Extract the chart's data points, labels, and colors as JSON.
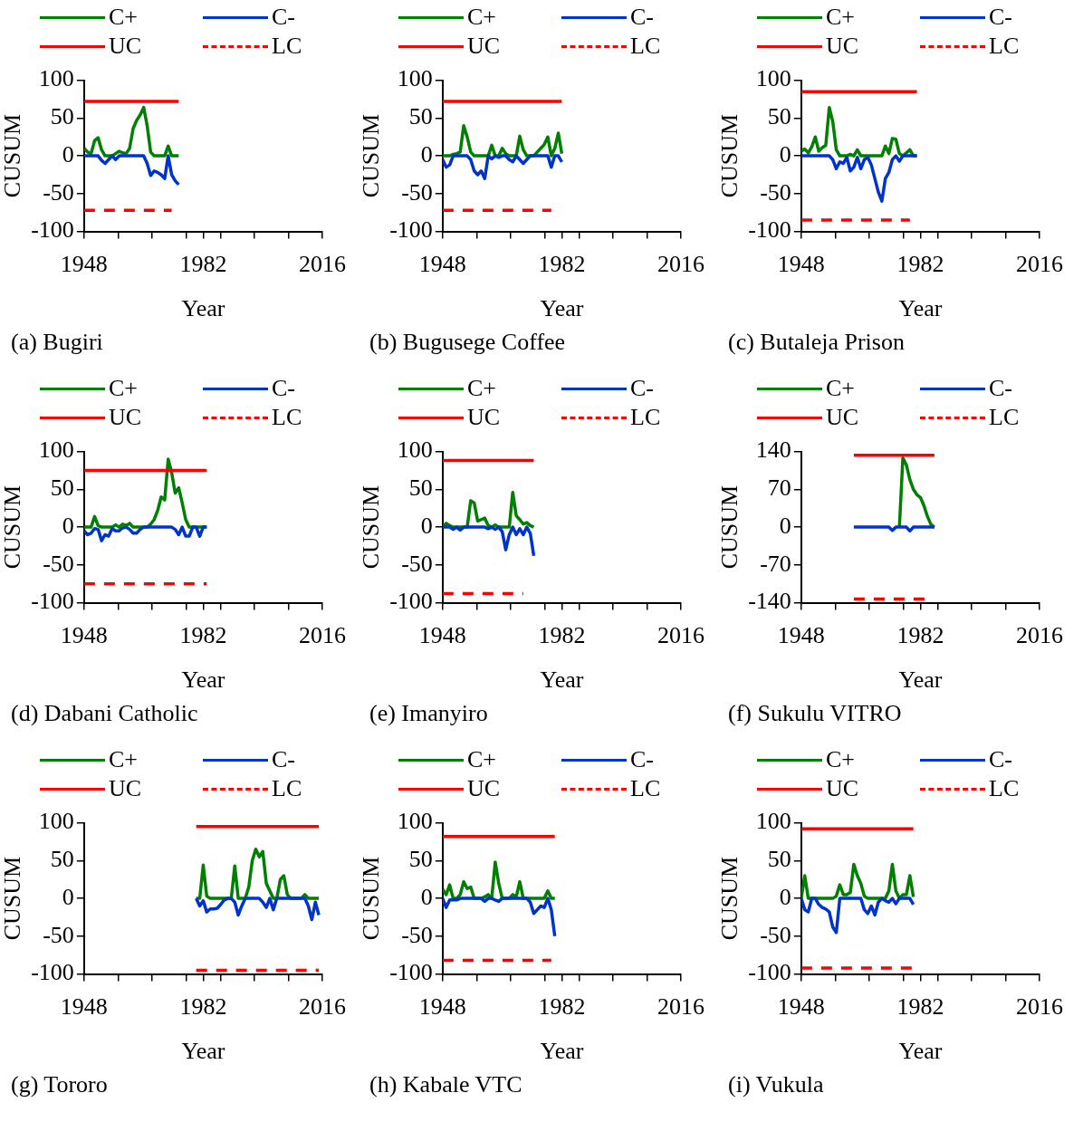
{
  "chart_data": [
    {
      "type": "line",
      "title": "(a) Bugiri",
      "xlabel": "Year",
      "ylabel": "CUSUM",
      "xlim": [
        1948,
        2016
      ],
      "xticks": [
        1948,
        {
          "value": 1957.7,
          "label": null
        },
        {
          "value": 1967.4,
          "label": null
        },
        {
          "value": 1977.1,
          "label": null
        },
        1982,
        {
          "value": 1986.9,
          "label": null
        },
        {
          "value": 1996.6,
          "label": null
        },
        {
          "value": 2006.3,
          "label": null
        },
        2016
      ],
      "ylim": [
        -100,
        100
      ],
      "yticks": [
        -100,
        -50,
        0,
        50,
        100
      ],
      "grid": false,
      "legend": "top",
      "marker": "none",
      "x": [
        1948,
        1949,
        1950,
        1951,
        1952,
        1953,
        1954,
        1955,
        1956,
        1957,
        1958,
        1959,
        1960,
        1961,
        1962,
        1963,
        1964,
        1965,
        1966,
        1967,
        1968,
        1969,
        1970,
        1971,
        1972,
        1973,
        1974,
        1975
      ],
      "series": [
        {
          "name": "C+",
          "color": "#008000",
          "values": [
            10,
            5,
            3,
            20,
            24,
            8,
            0,
            0,
            0,
            3,
            6,
            4,
            3,
            10,
            36,
            47,
            54,
            64,
            40,
            5,
            0,
            0,
            0,
            0,
            13,
            0,
            0,
            0
          ]
        },
        {
          "name": "C-",
          "color": "#0033cc",
          "values": [
            0,
            0,
            0,
            0,
            0,
            -6,
            -10,
            -5,
            0,
            -5,
            0,
            0,
            0,
            0,
            0,
            0,
            0,
            0,
            -10,
            -26,
            -20,
            -22,
            -25,
            -30,
            0,
            -25,
            -33,
            -38
          ]
        },
        {
          "name": "UC",
          "color": "#ff0000",
          "x": [
            1948,
            1975
          ],
          "values": [
            72,
            72
          ]
        },
        {
          "name": "LC",
          "color": "#ff0000",
          "line_style": "dashed",
          "x": [
            1948,
            1973
          ],
          "values": [
            -72,
            -72
          ]
        }
      ]
    },
    {
      "type": "line",
      "title": "(b) Bugusege Coffee",
      "xlabel": "Year",
      "ylabel": "CUSUM",
      "xlim": [
        1948,
        2016
      ],
      "xticks": [
        1948,
        {
          "value": 1957.7,
          "label": null
        },
        {
          "value": 1967.4,
          "label": null
        },
        {
          "value": 1977.1,
          "label": null
        },
        1982,
        {
          "value": 1986.9,
          "label": null
        },
        {
          "value": 1996.6,
          "label": null
        },
        {
          "value": 2006.3,
          "label": null
        },
        2016
      ],
      "ylim": [
        -100,
        100
      ],
      "yticks": [
        -100,
        -50,
        0,
        50,
        100
      ],
      "grid": false,
      "legend": "top",
      "marker": "none",
      "x": [
        1948,
        1949,
        1950,
        1951,
        1952,
        1953,
        1954,
        1955,
        1956,
        1957,
        1958,
        1959,
        1960,
        1961,
        1962,
        1963,
        1964,
        1965,
        1966,
        1967,
        1968,
        1969,
        1970,
        1971,
        1972,
        1973,
        1974,
        1975,
        1976,
        1977,
        1978,
        1979,
        1980,
        1981,
        1982
      ],
      "series": [
        {
          "name": "C+",
          "color": "#008000",
          "values": [
            0,
            0,
            0,
            2,
            3,
            5,
            40,
            25,
            5,
            0,
            0,
            0,
            0,
            0,
            14,
            0,
            0,
            10,
            3,
            0,
            0,
            0,
            26,
            8,
            0,
            0,
            0,
            5,
            10,
            15,
            25,
            0,
            10,
            30,
            3
          ]
        },
        {
          "name": "C-",
          "color": "#0033cc",
          "values": [
            -5,
            -15,
            -12,
            0,
            0,
            0,
            0,
            0,
            -5,
            -20,
            -25,
            -20,
            -30,
            0,
            -4,
            0,
            -2,
            0,
            0,
            -5,
            -8,
            0,
            -5,
            -10,
            -5,
            0,
            0,
            0,
            0,
            0,
            0,
            -15,
            0,
            0,
            -8
          ]
        },
        {
          "name": "UC",
          "color": "#ff0000",
          "x": [
            1948,
            1982
          ],
          "values": [
            72,
            72
          ]
        },
        {
          "name": "LC",
          "color": "#ff0000",
          "line_style": "dashed",
          "x": [
            1948,
            1979
          ],
          "values": [
            -72,
            -72
          ]
        }
      ]
    },
    {
      "type": "line",
      "title": "(c) Butaleja Prison",
      "xlabel": "Year",
      "ylabel": "CUSUM",
      "xlim": [
        1948,
        2016
      ],
      "xticks": [
        1948,
        {
          "value": 1957.7,
          "label": null
        },
        {
          "value": 1967.4,
          "label": null
        },
        {
          "value": 1977.1,
          "label": null
        },
        1982,
        {
          "value": 1986.9,
          "label": null
        },
        {
          "value": 1996.6,
          "label": null
        },
        {
          "value": 2006.3,
          "label": null
        },
        2016
      ],
      "ylim": [
        -100,
        100
      ],
      "yticks": [
        -100,
        -50,
        0,
        50,
        100
      ],
      "grid": false,
      "legend": "top",
      "marker": "none",
      "x": [
        1948,
        1949,
        1950,
        1951,
        1952,
        1953,
        1954,
        1955,
        1956,
        1957,
        1958,
        1959,
        1960,
        1961,
        1962,
        1963,
        1964,
        1965,
        1966,
        1967,
        1968,
        1969,
        1970,
        1971,
        1972,
        1973,
        1974,
        1975,
        1976,
        1977,
        1978,
        1979,
        1980,
        1981
      ],
      "series": [
        {
          "name": "C+",
          "color": "#008000",
          "values": [
            6,
            9,
            4,
            12,
            25,
            6,
            11,
            14,
            64,
            45,
            8,
            0,
            0,
            0,
            2,
            0,
            8,
            0,
            0,
            0,
            0,
            0,
            0,
            0,
            13,
            3,
            23,
            22,
            3,
            0,
            4,
            8,
            0,
            0
          ]
        },
        {
          "name": "C-",
          "color": "#0033cc",
          "values": [
            0,
            0,
            0,
            0,
            0,
            0,
            0,
            0,
            0,
            -5,
            -17,
            -8,
            -10,
            -2,
            -20,
            -15,
            -2,
            -17,
            -5,
            -2,
            -12,
            -30,
            -48,
            -60,
            -30,
            -22,
            -5,
            0,
            -7,
            0,
            0,
            0,
            0,
            0
          ]
        },
        {
          "name": "UC",
          "color": "#ff0000",
          "x": [
            1948,
            1981
          ],
          "values": [
            85,
            85
          ]
        },
        {
          "name": "LC",
          "color": "#ff0000",
          "line_style": "dashed",
          "x": [
            1948,
            1979
          ],
          "values": [
            -85,
            -85
          ]
        }
      ]
    },
    {
      "type": "line",
      "title": "(d) Dabani Catholic",
      "xlabel": "Year",
      "ylabel": "CUSUM",
      "xlim": [
        1948,
        2016
      ],
      "xticks": [
        1948,
        {
          "value": 1957.7,
          "label": null
        },
        {
          "value": 1967.4,
          "label": null
        },
        {
          "value": 1977.1,
          "label": null
        },
        1982,
        {
          "value": 1986.9,
          "label": null
        },
        {
          "value": 1996.6,
          "label": null
        },
        {
          "value": 2006.3,
          "label": null
        },
        2016
      ],
      "ylim": [
        -100,
        100
      ],
      "yticks": [
        -100,
        -50,
        0,
        50,
        100
      ],
      "grid": false,
      "legend": "top",
      "marker": "none",
      "x": [
        1948,
        1949,
        1950,
        1951,
        1952,
        1953,
        1954,
        1955,
        1956,
        1957,
        1958,
        1959,
        1960,
        1961,
        1962,
        1963,
        1964,
        1965,
        1966,
        1967,
        1968,
        1969,
        1970,
        1971,
        1972,
        1973,
        1974,
        1975,
        1976,
        1977,
        1978,
        1979,
        1980,
        1981,
        1982,
        1983
      ],
      "series": [
        {
          "name": "C+",
          "color": "#008000",
          "values": [
            0,
            0,
            0,
            14,
            2,
            0,
            0,
            0,
            0,
            3,
            0,
            4,
            2,
            5,
            0,
            0,
            0,
            0,
            0,
            4,
            10,
            22,
            40,
            36,
            90,
            72,
            45,
            52,
            32,
            10,
            0,
            0,
            0,
            0,
            0,
            0
          ]
        },
        {
          "name": "C-",
          "color": "#0033cc",
          "values": [
            -5,
            -10,
            -8,
            -2,
            -3,
            -18,
            -10,
            -12,
            -2,
            -5,
            -5,
            -1,
            0,
            -3,
            -8,
            -8,
            -3,
            0,
            0,
            0,
            0,
            0,
            0,
            0,
            0,
            0,
            -3,
            -10,
            0,
            -12,
            -12,
            0,
            0,
            -12,
            0,
            0
          ]
        },
        {
          "name": "UC",
          "color": "#ff0000",
          "x": [
            1948,
            1983
          ],
          "values": [
            75,
            75
          ]
        },
        {
          "name": "LC",
          "color": "#ff0000",
          "line_style": "dashed",
          "x": [
            1948,
            1983
          ],
          "values": [
            -75,
            -75
          ]
        }
      ]
    },
    {
      "type": "line",
      "title": "(e) Imanyiro",
      "xlabel": "Year",
      "ylabel": "CUSUM",
      "xlim": [
        1948,
        2016
      ],
      "xticks": [
        1948,
        {
          "value": 1957.7,
          "label": null
        },
        {
          "value": 1967.4,
          "label": null
        },
        {
          "value": 1977.1,
          "label": null
        },
        1982,
        {
          "value": 1986.9,
          "label": null
        },
        {
          "value": 1996.6,
          "label": null
        },
        {
          "value": 2006.3,
          "label": null
        },
        2016
      ],
      "ylim": [
        -100,
        100
      ],
      "yticks": [
        -100,
        -50,
        0,
        50,
        100
      ],
      "grid": false,
      "legend": "top",
      "marker": "none",
      "x": [
        1948,
        1949,
        1950,
        1951,
        1952,
        1953,
        1954,
        1955,
        1956,
        1957,
        1958,
        1959,
        1960,
        1961,
        1962,
        1963,
        1964,
        1965,
        1966,
        1967,
        1968,
        1969,
        1970,
        1971,
        1972,
        1973,
        1974
      ],
      "series": [
        {
          "name": "C+",
          "color": "#008000",
          "values": [
            0,
            5,
            2,
            0,
            0,
            0,
            0,
            0,
            35,
            32,
            8,
            10,
            12,
            2,
            0,
            3,
            0,
            0,
            0,
            0,
            46,
            15,
            10,
            4,
            6,
            2,
            0
          ]
        },
        {
          "name": "C-",
          "color": "#0033cc",
          "values": [
            0,
            0,
            0,
            -3,
            0,
            -4,
            0,
            0,
            0,
            0,
            0,
            0,
            0,
            -2,
            0,
            -3,
            0,
            -6,
            -30,
            -10,
            0,
            -10,
            -2,
            -10,
            0,
            -8,
            -38
          ]
        },
        {
          "name": "UC",
          "color": "#ff0000",
          "x": [
            1948,
            1974
          ],
          "values": [
            88,
            88
          ]
        },
        {
          "name": "LC",
          "color": "#ff0000",
          "line_style": "dashed",
          "x": [
            1948,
            1971
          ],
          "values": [
            -88,
            -88
          ]
        }
      ]
    },
    {
      "type": "line",
      "title": "(f) Sukulu VITRO",
      "xlabel": "Year",
      "ylabel": "CUSUM",
      "xlim": [
        1948,
        2016
      ],
      "xticks": [
        1948,
        {
          "value": 1957.7,
          "label": null
        },
        {
          "value": 1967.4,
          "label": null
        },
        {
          "value": 1977.1,
          "label": null
        },
        1982,
        {
          "value": 1986.9,
          "label": null
        },
        {
          "value": 1996.6,
          "label": null
        },
        {
          "value": 2006.3,
          "label": null
        },
        2016
      ],
      "ylim": [
        -140,
        140
      ],
      "yticks": [
        -140,
        -70,
        0,
        70,
        140
      ],
      "grid": false,
      "legend": "top",
      "marker": "none",
      "x": [
        1963,
        1964,
        1965,
        1966,
        1967,
        1968,
        1969,
        1970,
        1971,
        1972,
        1973,
        1974,
        1975,
        1976,
        1977,
        1978,
        1979,
        1980,
        1981,
        1982,
        1983,
        1984,
        1985,
        1986
      ],
      "series": [
        {
          "name": "C+",
          "color": "#008000",
          "values": [
            null,
            null,
            null,
            null,
            null,
            null,
            null,
            null,
            null,
            null,
            null,
            null,
            null,
            0,
            128,
            115,
            88,
            70,
            60,
            55,
            40,
            20,
            5,
            0
          ]
        },
        {
          "name": "C-",
          "color": "#0033cc",
          "values": [
            0,
            0,
            0,
            0,
            0,
            0,
            0,
            0,
            0,
            0,
            0,
            -6,
            0,
            0,
            0,
            0,
            -7,
            0,
            0,
            0,
            0,
            0,
            0,
            0
          ]
        },
        {
          "name": "UC",
          "color": "#ff0000",
          "x": [
            1963,
            1986
          ],
          "values": [
            133,
            133
          ]
        },
        {
          "name": "LC",
          "color": "#ff0000",
          "line_style": "dashed",
          "x": [
            1963,
            1984
          ],
          "values": [
            -133,
            -133
          ]
        }
      ]
    },
    {
      "type": "line",
      "title": "(g) Tororo",
      "xlabel": "Year",
      "ylabel": "CUSUM",
      "xlim": [
        1948,
        2016
      ],
      "xticks": [
        1948,
        {
          "value": 1957.7,
          "label": null
        },
        {
          "value": 1967.4,
          "label": null
        },
        {
          "value": 1977.1,
          "label": null
        },
        1982,
        {
          "value": 1986.9,
          "label": null
        },
        {
          "value": 1996.6,
          "label": null
        },
        {
          "value": 2006.3,
          "label": null
        },
        2016
      ],
      "ylim": [
        -100,
        100
      ],
      "yticks": [
        -100,
        -50,
        0,
        50,
        100
      ],
      "grid": false,
      "legend": "top",
      "marker": "none",
      "x": [
        1980,
        1981,
        1982,
        1983,
        1984,
        1985,
        1986,
        1987,
        1988,
        1989,
        1990,
        1991,
        1992,
        1993,
        1994,
        1995,
        1996,
        1997,
        1998,
        1999,
        2000,
        2001,
        2002,
        2003,
        2004,
        2005,
        2006,
        2007,
        2008,
        2009,
        2010,
        2011,
        2012,
        2013,
        2014,
        2015
      ],
      "series": [
        {
          "name": "C+",
          "color": "#008000",
          "values": [
            0,
            0,
            44,
            3,
            0,
            0,
            0,
            0,
            0,
            0,
            0,
            43,
            0,
            0,
            0,
            15,
            50,
            65,
            55,
            62,
            20,
            10,
            0,
            0,
            25,
            30,
            5,
            0,
            0,
            0,
            0,
            5,
            0,
            0,
            0,
            0
          ]
        },
        {
          "name": "C-",
          "color": "#0033cc",
          "values": [
            0,
            -10,
            -3,
            -18,
            -14,
            -14,
            -13,
            -8,
            -2,
            0,
            0,
            -5,
            -22,
            -10,
            0,
            0,
            0,
            0,
            0,
            -5,
            -12,
            0,
            -15,
            0,
            0,
            0,
            0,
            0,
            0,
            0,
            0,
            0,
            -10,
            -28,
            -5,
            -22
          ]
        },
        {
          "name": "UC",
          "color": "#ff0000",
          "x": [
            1980,
            2015
          ],
          "values": [
            95,
            95
          ]
        },
        {
          "name": "LC",
          "color": "#ff0000",
          "line_style": "dashed",
          "x": [
            1980,
            2015
          ],
          "values": [
            -95,
            -95
          ]
        }
      ]
    },
    {
      "type": "line",
      "title": "(h) Kabale VTC",
      "xlabel": "Year",
      "ylabel": "CUSUM",
      "xlim": [
        1948,
        2016
      ],
      "xticks": [
        1948,
        {
          "value": 1957.7,
          "label": null
        },
        {
          "value": 1967.4,
          "label": null
        },
        {
          "value": 1977.1,
          "label": null
        },
        1982,
        {
          "value": 1986.9,
          "label": null
        },
        {
          "value": 1996.6,
          "label": null
        },
        {
          "value": 2006.3,
          "label": null
        },
        2016
      ],
      "ylim": [
        -100,
        100
      ],
      "yticks": [
        -100,
        -50,
        0,
        50,
        100
      ],
      "grid": false,
      "legend": "top",
      "marker": "none",
      "x": [
        1948,
        1949,
        1950,
        1951,
        1952,
        1953,
        1954,
        1955,
        1956,
        1957,
        1958,
        1959,
        1960,
        1961,
        1962,
        1963,
        1964,
        1965,
        1966,
        1967,
        1968,
        1969,
        1970,
        1971,
        1972,
        1973,
        1974,
        1975,
        1976,
        1977,
        1978,
        1979,
        1980
      ],
      "series": [
        {
          "name": "C+",
          "color": "#008000",
          "values": [
            12,
            5,
            18,
            0,
            0,
            5,
            22,
            13,
            15,
            0,
            0,
            0,
            2,
            5,
            0,
            48,
            20,
            0,
            0,
            0,
            5,
            2,
            22,
            0,
            0,
            0,
            0,
            0,
            0,
            0,
            10,
            0,
            0
          ]
        },
        {
          "name": "C-",
          "color": "#0033cc",
          "values": [
            0,
            -12,
            -2,
            -2,
            -2,
            0,
            0,
            0,
            0,
            0,
            0,
            0,
            -4,
            0,
            0,
            -2,
            -4,
            0,
            0,
            0,
            0,
            0,
            0,
            0,
            0,
            -5,
            -20,
            -15,
            -10,
            -12,
            0,
            -15,
            -50
          ]
        },
        {
          "name": "UC",
          "color": "#ff0000",
          "x": [
            1948,
            1980
          ],
          "values": [
            82,
            82
          ]
        },
        {
          "name": "LC",
          "color": "#ff0000",
          "line_style": "dashed",
          "x": [
            1948,
            1979
          ],
          "values": [
            -82,
            -82
          ]
        }
      ]
    },
    {
      "type": "line",
      "title": "(i) Vukula",
      "xlabel": "Year",
      "ylabel": "CUSUM",
      "xlim": [
        1948,
        2016
      ],
      "xticks": [
        1948,
        {
          "value": 1957.7,
          "label": null
        },
        {
          "value": 1967.4,
          "label": null
        },
        {
          "value": 1977.1,
          "label": null
        },
        1982,
        {
          "value": 1986.9,
          "label": null
        },
        {
          "value": 1996.6,
          "label": null
        },
        {
          "value": 2006.3,
          "label": null
        },
        2016
      ],
      "ylim": [
        -100,
        100
      ],
      "yticks": [
        -100,
        -50,
        0,
        50,
        100
      ],
      "grid": false,
      "legend": "top",
      "marker": "none",
      "x": [
        1948,
        1949,
        1950,
        1951,
        1952,
        1953,
        1954,
        1955,
        1956,
        1957,
        1958,
        1959,
        1960,
        1961,
        1962,
        1963,
        1964,
        1965,
        1966,
        1967,
        1968,
        1969,
        1970,
        1971,
        1972,
        1973,
        1974,
        1975,
        1976,
        1977,
        1978,
        1979,
        1980
      ],
      "series": [
        {
          "name": "C+",
          "color": "#008000",
          "values": [
            0,
            30,
            0,
            0,
            0,
            0,
            0,
            0,
            0,
            0,
            3,
            18,
            5,
            5,
            8,
            45,
            30,
            20,
            3,
            0,
            0,
            0,
            0,
            0,
            0,
            10,
            45,
            10,
            0,
            5,
            5,
            30,
            2
          ]
        },
        {
          "name": "C-",
          "color": "#0033cc",
          "values": [
            0,
            -15,
            -18,
            0,
            0,
            -8,
            -12,
            -14,
            -18,
            -38,
            -45,
            0,
            0,
            0,
            0,
            0,
            0,
            0,
            -15,
            -20,
            -10,
            -22,
            -5,
            0,
            -3,
            -5,
            0,
            -7,
            0,
            0,
            0,
            0,
            -8
          ]
        },
        {
          "name": "UC",
          "color": "#ff0000",
          "x": [
            1948,
            1980
          ],
          "values": [
            92,
            92
          ]
        },
        {
          "name": "LC",
          "color": "#ff0000",
          "line_style": "dashed",
          "x": [
            1948,
            1980
          ],
          "values": [
            -92,
            -92
          ]
        }
      ]
    }
  ]
}
